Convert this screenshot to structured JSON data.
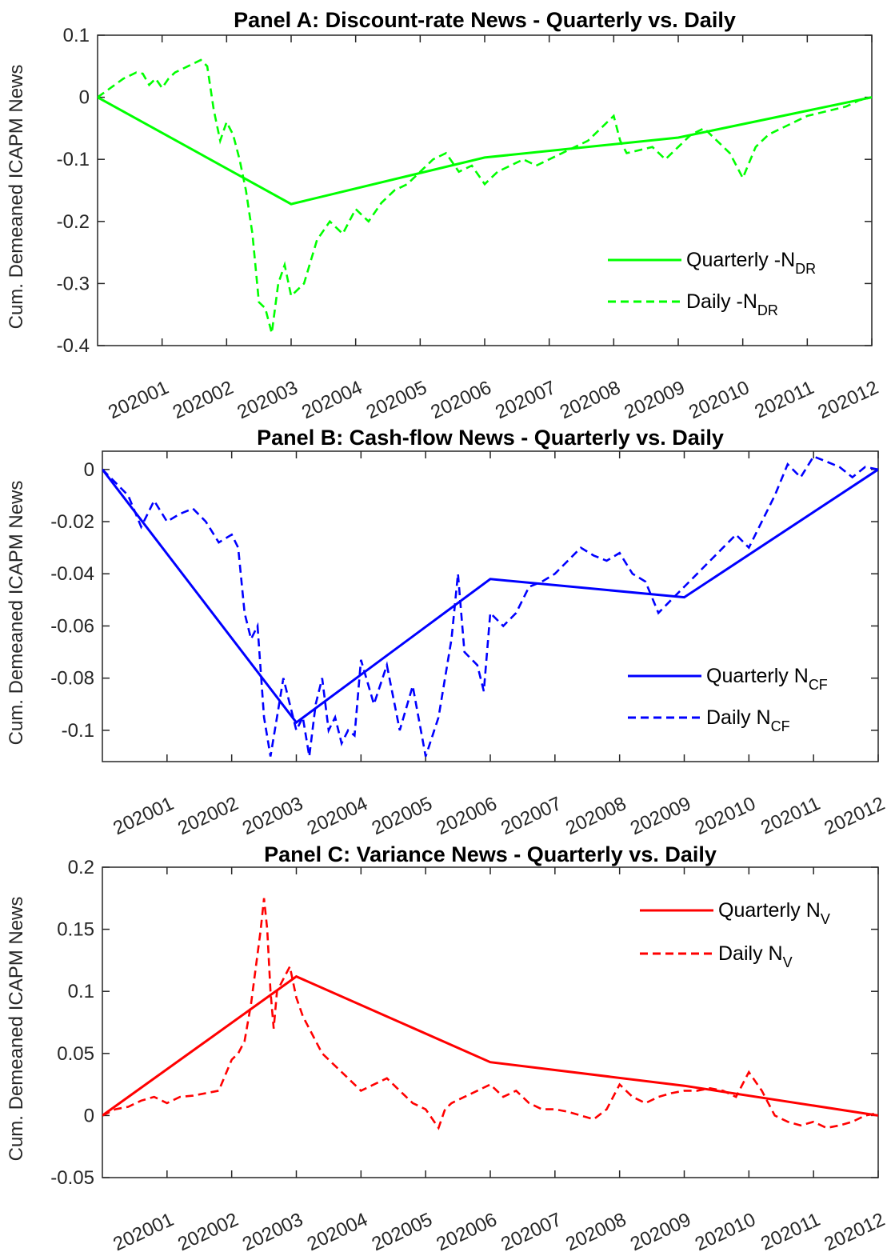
{
  "chart_data": [
    {
      "type": "line",
      "title": "Panel A: Discount-rate News - Quarterly vs. Daily",
      "ylabel": "Cum. Demeaned ICAPM News",
      "ylim": [
        -0.4,
        0.1
      ],
      "yticks": [
        0.1,
        0,
        -0.1,
        -0.2,
        -0.3,
        -0.4
      ],
      "ytick_labels": [
        "0.1",
        "0",
        "-0.1",
        "-0.2",
        "-0.3",
        "-0.4"
      ],
      "xlim": [
        0,
        12
      ],
      "xtick_labels": [
        "202001",
        "202002",
        "202003",
        "202004",
        "202005",
        "202006",
        "202007",
        "202008",
        "202009",
        "202010",
        "202011",
        "202012"
      ],
      "color": "#00ff00",
      "legend_position": "bottom-right",
      "series": [
        {
          "name": "Quarterly -N",
          "name_sub": "DR",
          "style": "solid",
          "x": [
            0,
            3,
            6,
            9,
            12
          ],
          "y": [
            0,
            -0.172,
            -0.097,
            -0.065,
            0
          ]
        },
        {
          "name": "Daily -N",
          "name_sub": "DR",
          "style": "dashed",
          "x": [
            0,
            0.2,
            0.4,
            0.6,
            0.7,
            0.8,
            0.9,
            1.0,
            1.1,
            1.2,
            1.3,
            1.4,
            1.5,
            1.6,
            1.7,
            1.8,
            1.9,
            2.0,
            2.1,
            2.2,
            2.3,
            2.4,
            2.5,
            2.6,
            2.7,
            2.8,
            2.9,
            3.0,
            3.2,
            3.4,
            3.6,
            3.8,
            4.0,
            4.2,
            4.4,
            4.6,
            4.8,
            5.0,
            5.2,
            5.4,
            5.6,
            5.8,
            6.0,
            6.2,
            6.4,
            6.6,
            6.8,
            7.0,
            7.2,
            7.4,
            7.6,
            7.8,
            8.0,
            8.1,
            8.2,
            8.4,
            8.6,
            8.8,
            9.0,
            9.2,
            9.4,
            9.6,
            9.8,
            10.0,
            10.2,
            10.4,
            10.6,
            10.8,
            11.0,
            11.2,
            11.4,
            11.6,
            11.8,
            12.0
          ],
          "y": [
            0,
            0.015,
            0.03,
            0.04,
            0.038,
            0.02,
            0.03,
            0.015,
            0.03,
            0.04,
            0.045,
            0.05,
            0.055,
            0.06,
            0.05,
            -0.02,
            -0.07,
            -0.04,
            -0.06,
            -0.1,
            -0.15,
            -0.22,
            -0.33,
            -0.34,
            -0.38,
            -0.3,
            -0.27,
            -0.32,
            -0.3,
            -0.23,
            -0.2,
            -0.22,
            -0.18,
            -0.2,
            -0.17,
            -0.15,
            -0.14,
            -0.12,
            -0.1,
            -0.09,
            -0.12,
            -0.11,
            -0.14,
            -0.12,
            -0.11,
            -0.1,
            -0.11,
            -0.1,
            -0.09,
            -0.08,
            -0.07,
            -0.05,
            -0.03,
            -0.07,
            -0.09,
            -0.085,
            -0.08,
            -0.1,
            -0.08,
            -0.06,
            -0.05,
            -0.07,
            -0.09,
            -0.13,
            -0.08,
            -0.06,
            -0.05,
            -0.04,
            -0.03,
            -0.025,
            -0.02,
            -0.015,
            -0.005,
            0
          ]
        }
      ]
    },
    {
      "type": "line",
      "title": "Panel B: Cash-flow News - Quarterly vs. Daily",
      "ylabel": "Cum. Demeaned ICAPM News",
      "ylim": [
        -0.112,
        0.007
      ],
      "yticks": [
        0,
        -0.02,
        -0.04,
        -0.06,
        -0.08,
        -0.1
      ],
      "ytick_labels": [
        "0",
        "-0.02",
        "-0.04",
        "-0.06",
        "-0.08",
        "-0.1"
      ],
      "xlim": [
        0,
        12
      ],
      "xtick_labels": [
        "202001",
        "202002",
        "202003",
        "202004",
        "202005",
        "202006",
        "202007",
        "202008",
        "202009",
        "202010",
        "202011",
        "202012"
      ],
      "color": "#0000ff",
      "legend_position": "bottom-right",
      "series": [
        {
          "name": "Quarterly N",
          "name_sub": "CF",
          "style": "solid",
          "x": [
            0,
            3,
            6,
            9,
            12
          ],
          "y": [
            0,
            -0.097,
            -0.042,
            -0.049,
            0
          ]
        },
        {
          "name": "Daily N",
          "name_sub": "CF",
          "style": "dashed",
          "x": [
            0,
            0.2,
            0.4,
            0.6,
            0.8,
            1.0,
            1.2,
            1.4,
            1.6,
            1.8,
            2.0,
            2.1,
            2.2,
            2.3,
            2.4,
            2.5,
            2.6,
            2.7,
            2.8,
            2.9,
            3.0,
            3.1,
            3.2,
            3.3,
            3.4,
            3.5,
            3.6,
            3.7,
            3.8,
            3.9,
            4.0,
            4.2,
            4.4,
            4.6,
            4.8,
            5.0,
            5.2,
            5.3,
            5.4,
            5.5,
            5.6,
            5.8,
            5.9,
            6.0,
            6.2,
            6.4,
            6.6,
            6.8,
            7.0,
            7.2,
            7.4,
            7.6,
            7.8,
            8.0,
            8.2,
            8.4,
            8.6,
            8.8,
            9.0,
            9.2,
            9.4,
            9.6,
            9.8,
            10.0,
            10.2,
            10.4,
            10.6,
            10.8,
            11.0,
            11.2,
            11.4,
            11.6,
            11.8,
            12.0
          ],
          "y": [
            0,
            -0.005,
            -0.01,
            -0.022,
            -0.012,
            -0.02,
            -0.017,
            -0.015,
            -0.02,
            -0.028,
            -0.025,
            -0.03,
            -0.055,
            -0.065,
            -0.06,
            -0.095,
            -0.11,
            -0.095,
            -0.08,
            -0.09,
            -0.1,
            -0.095,
            -0.11,
            -0.09,
            -0.08,
            -0.1,
            -0.095,
            -0.105,
            -0.1,
            -0.102,
            -0.073,
            -0.09,
            -0.075,
            -0.1,
            -0.083,
            -0.11,
            -0.095,
            -0.08,
            -0.065,
            -0.04,
            -0.07,
            -0.075,
            -0.085,
            -0.055,
            -0.06,
            -0.055,
            -0.045,
            -0.043,
            -0.04,
            -0.035,
            -0.03,
            -0.033,
            -0.035,
            -0.032,
            -0.04,
            -0.043,
            -0.055,
            -0.05,
            -0.045,
            -0.04,
            -0.035,
            -0.03,
            -0.025,
            -0.03,
            -0.02,
            -0.01,
            0.002,
            -0.003,
            0.005,
            0.003,
            0.001,
            -0.003,
            0.001,
            0
          ]
        }
      ]
    },
    {
      "type": "line",
      "title": "Panel C: Variance News - Quarterly vs. Daily",
      "ylabel": "Cum. Demeaned ICAPM News",
      "ylim": [
        -0.05,
        0.2
      ],
      "yticks": [
        0.2,
        0.15,
        0.1,
        0.05,
        0,
        -0.05
      ],
      "ytick_labels": [
        "0.2",
        "0.15",
        "0.1",
        "0.05",
        "0",
        "-0.05"
      ],
      "xlim": [
        0,
        12
      ],
      "xtick_labels": [
        "202001",
        "202002",
        "202003",
        "202004",
        "202005",
        "202006",
        "202007",
        "202008",
        "202009",
        "202010",
        "202011",
        "202012"
      ],
      "color": "#ff0000",
      "legend_position": "top-right",
      "series": [
        {
          "name": "Quarterly N",
          "name_sub": "V",
          "style": "solid",
          "x": [
            0,
            3,
            6,
            9,
            12
          ],
          "y": [
            0,
            0.112,
            0.043,
            0.024,
            0
          ]
        },
        {
          "name": "Daily N",
          "name_sub": "V",
          "style": "dashed",
          "x": [
            0,
            0.2,
            0.4,
            0.6,
            0.8,
            1.0,
            1.2,
            1.4,
            1.6,
            1.8,
            2.0,
            2.1,
            2.2,
            2.3,
            2.4,
            2.45,
            2.5,
            2.55,
            2.6,
            2.65,
            2.7,
            2.8,
            2.9,
            3.0,
            3.1,
            3.2,
            3.4,
            3.6,
            3.8,
            4.0,
            4.2,
            4.4,
            4.6,
            4.8,
            5.0,
            5.2,
            5.3,
            5.4,
            5.6,
            5.8,
            6.0,
            6.2,
            6.4,
            6.6,
            6.8,
            7.0,
            7.2,
            7.4,
            7.6,
            7.8,
            8.0,
            8.2,
            8.4,
            8.6,
            8.8,
            9.0,
            9.2,
            9.4,
            9.6,
            9.8,
            10.0,
            10.2,
            10.4,
            10.6,
            10.8,
            11.0,
            11.2,
            11.4,
            11.6,
            11.8,
            12.0
          ],
          "y": [
            0,
            0.005,
            0.007,
            0.012,
            0.015,
            0.01,
            0.015,
            0.016,
            0.018,
            0.02,
            0.045,
            0.05,
            0.06,
            0.09,
            0.13,
            0.15,
            0.175,
            0.15,
            0.1,
            0.07,
            0.1,
            0.11,
            0.12,
            0.095,
            0.08,
            0.07,
            0.05,
            0.04,
            0.03,
            0.02,
            0.025,
            0.03,
            0.02,
            0.01,
            0.005,
            -0.01,
            0.005,
            0.01,
            0.015,
            0.02,
            0.025,
            0.015,
            0.02,
            0.01,
            0.005,
            0.005,
            0.003,
            0.0,
            -0.003,
            0.005,
            0.025,
            0.015,
            0.01,
            0.015,
            0.018,
            0.02,
            0.02,
            0.022,
            0.02,
            0.015,
            0.035,
            0.02,
            0.0,
            -0.005,
            -0.008,
            -0.005,
            -0.01,
            -0.008,
            -0.005,
            0.0,
            0.002
          ]
        }
      ]
    }
  ]
}
